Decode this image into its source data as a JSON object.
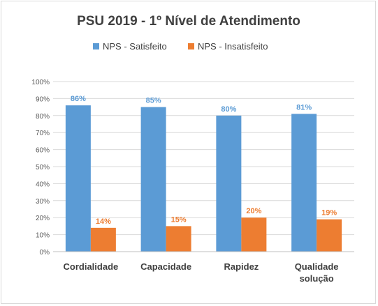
{
  "chart_data": {
    "type": "bar",
    "title": "PSU 2019 - 1º Nível de Atendimento",
    "categories": [
      [
        "Cordialidade"
      ],
      [
        "Capacidade"
      ],
      [
        "Rapidez"
      ],
      [
        "Qualidade",
        "solução"
      ]
    ],
    "series": [
      {
        "name": "NPS - Satisfeito",
        "color": "#5b9bd5",
        "values": [
          86,
          85,
          80,
          81
        ],
        "labels": [
          "86%",
          "85%",
          "80%",
          "81%"
        ]
      },
      {
        "name": "NPS - Insatisfeito",
        "color": "#ed7d31",
        "values": [
          14,
          15,
          20,
          19
        ],
        "labels": [
          "14%",
          "15%",
          "20%",
          "19%"
        ]
      }
    ],
    "ylim": [
      0,
      100
    ],
    "yticks": [
      "0%",
      "10%",
      "20%",
      "30%",
      "40%",
      "50%",
      "60%",
      "70%",
      "80%",
      "90%",
      "100%"
    ],
    "grid": true,
    "legend_position": "top",
    "xlabel": "",
    "ylabel": ""
  }
}
